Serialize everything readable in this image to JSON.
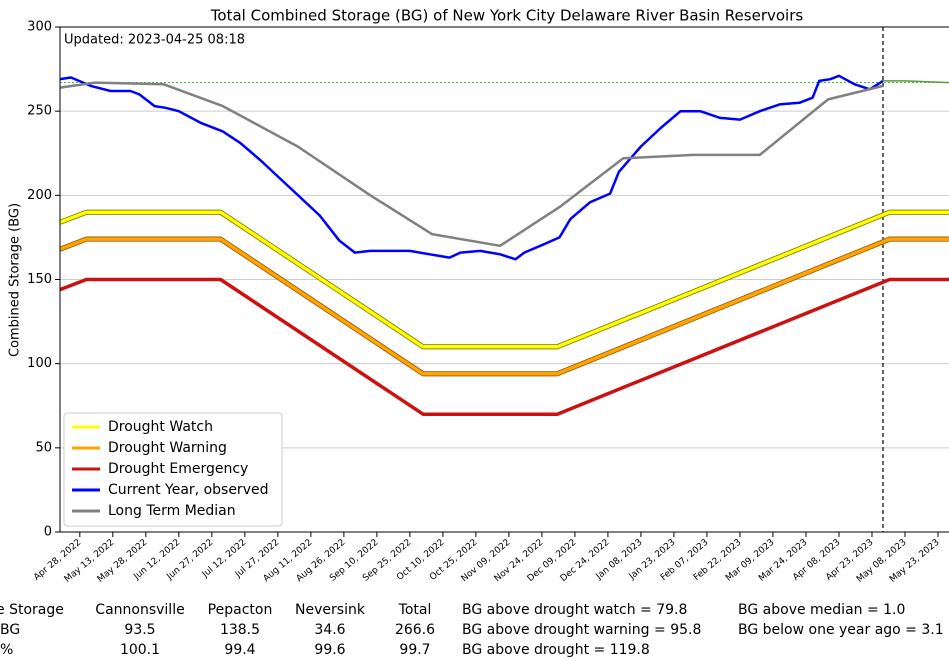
{
  "chart_data": {
    "type": "line",
    "title": "Total Combined Storage (BG) of New York City Delaware River Basin Reservoirs",
    "annotation": "Updated: 2023-04-25 08:18",
    "y_label": "Combined Storage (BG)",
    "xlim": [
      "2022-04-19",
      "2023-05-28"
    ],
    "xticks": [
      {
        "value": "2022-04-28",
        "label": "Apr 28, 2022"
      },
      {
        "value": "2022-05-13",
        "label": "May 13, 2022"
      },
      {
        "value": "2022-05-28",
        "label": "May 28, 2022"
      },
      {
        "value": "2022-06-12",
        "label": "Jun 12, 2022"
      },
      {
        "value": "2022-06-27",
        "label": "Jun 27, 2022"
      },
      {
        "value": "2022-07-12",
        "label": "Jul 12, 2022"
      },
      {
        "value": "2022-07-27",
        "label": "Jul 27, 2022"
      },
      {
        "value": "2022-08-11",
        "label": "Aug 11, 2022"
      },
      {
        "value": "2022-08-26",
        "label": "Aug 26, 2022"
      },
      {
        "value": "2022-09-10",
        "label": "Sep 10, 2022"
      },
      {
        "value": "2022-09-25",
        "label": "Sep 25, 2022"
      },
      {
        "value": "2022-10-10",
        "label": "Oct 10, 2022"
      },
      {
        "value": "2022-10-25",
        "label": "Oct 25, 2022"
      },
      {
        "value": "2022-11-09",
        "label": "Nov 09, 2022"
      },
      {
        "value": "2022-11-24",
        "label": "Nov 24, 2022"
      },
      {
        "value": "2022-12-09",
        "label": "Dec 09, 2022"
      },
      {
        "value": "2022-12-24",
        "label": "Dec 24, 2022"
      },
      {
        "value": "2023-01-08",
        "label": "Jan 08, 2023"
      },
      {
        "value": "2023-01-23",
        "label": "Jan 23, 2023"
      },
      {
        "value": "2023-02-07",
        "label": "Feb 07, 2023"
      },
      {
        "value": "2023-02-22",
        "label": "Feb 22, 2023"
      },
      {
        "value": "2023-03-09",
        "label": "Mar 09, 2023"
      },
      {
        "value": "2023-03-24",
        "label": "Mar 24, 2023"
      },
      {
        "value": "2023-04-08",
        "label": "Apr 08, 2023"
      },
      {
        "value": "2023-04-23",
        "label": "Apr 23, 2023"
      },
      {
        "value": "2023-05-08",
        "label": "May 08, 2023"
      },
      {
        "value": "2023-05-23",
        "label": "May 23, 2023"
      }
    ],
    "ylim": [
      0,
      300
    ],
    "yticks": [
      0,
      50,
      100,
      150,
      200,
      250,
      300
    ],
    "grid": true,
    "legend": "lower left",
    "series": [
      {
        "name": "Drought Watch",
        "color": "#ffff00",
        "x": [
          "2022-04-19",
          "2022-05-01",
          "2022-07-01",
          "2022-10-01",
          "2022-12-01",
          "2023-05-01",
          "2023-05-28"
        ],
        "values": [
          184,
          190,
          190,
          110,
          110,
          190,
          190
        ]
      },
      {
        "name": "Drought Warning",
        "color": "#ffa500",
        "x": [
          "2022-04-19",
          "2022-05-01",
          "2022-07-01",
          "2022-10-01",
          "2022-12-01",
          "2023-05-01",
          "2023-05-28"
        ],
        "values": [
          168,
          174,
          174,
          94,
          94,
          174,
          174
        ]
      },
      {
        "name": "Drought Emergency",
        "color": "#cc1111",
        "x": [
          "2022-04-19",
          "2022-05-01",
          "2022-07-01",
          "2022-10-01",
          "2022-12-01",
          "2023-05-01",
          "2023-05-28"
        ],
        "values": [
          144,
          150,
          150,
          70,
          70,
          150,
          150
        ]
      },
      {
        "name": "Current Year, observed",
        "color": "#0000ff",
        "x": [
          "2022-04-19",
          "2022-04-24",
          "2022-05-03",
          "2022-05-12",
          "2022-05-21",
          "2022-05-25",
          "2022-06-01",
          "2022-06-06",
          "2022-06-12",
          "2022-06-22",
          "2022-07-02",
          "2022-07-10",
          "2022-07-19",
          "2022-07-28",
          "2022-08-06",
          "2022-08-15",
          "2022-08-24",
          "2022-08-31",
          "2022-09-07",
          "2022-09-16",
          "2022-09-25",
          "2022-10-04",
          "2022-10-13",
          "2022-10-18",
          "2022-10-27",
          "2022-11-05",
          "2022-11-12",
          "2022-11-16",
          "2022-11-25",
          "2022-12-02",
          "2022-12-07",
          "2022-12-16",
          "2022-12-25",
          "2022-12-29",
          "2023-01-08",
          "2023-01-17",
          "2023-01-26",
          "2023-02-04",
          "2023-02-13",
          "2023-02-22",
          "2023-03-03",
          "2023-03-12",
          "2023-03-21",
          "2023-03-27",
          "2023-03-30",
          "2023-04-04",
          "2023-04-08",
          "2023-04-15",
          "2023-04-22",
          "2023-04-28"
        ],
        "values": [
          269,
          270,
          265,
          262,
          262,
          260,
          253,
          252,
          250,
          243,
          238,
          231,
          221,
          210,
          199,
          188,
          173,
          166,
          167,
          167,
          167,
          165,
          163,
          166,
          167,
          165,
          162,
          166,
          171,
          175,
          186,
          196,
          201,
          214,
          229,
          240,
          250,
          250,
          246,
          245,
          250,
          254,
          255,
          258,
          268,
          269,
          271,
          266,
          263,
          268
        ]
      },
      {
        "name": "Long Term Median",
        "color": "#808080",
        "x": [
          "2022-04-19",
          "2022-05-05",
          "2022-06-05",
          "2022-07-02",
          "2022-08-05",
          "2022-09-07",
          "2022-10-05",
          "2022-11-05",
          "2022-12-02",
          "2022-12-31",
          "2023-02-01",
          "2023-03-03",
          "2023-04-03",
          "2023-04-28"
        ],
        "values": [
          264,
          267,
          266,
          253,
          229,
          200,
          177,
          170,
          193,
          222,
          224,
          224,
          257,
          265
        ]
      },
      {
        "color": "#5a9a3a",
        "x": [
          "2023-04-28",
          "2023-05-08",
          "2023-05-28"
        ],
        "values": [
          268,
          268,
          267
        ]
      }
    ],
    "hline": {
      "value": 267,
      "color": "#33cc33"
    },
    "vline": "2023-04-28"
  },
  "table": {
    "header": [
      "e Storage",
      "Cannonsville",
      "Pepacton",
      "Neversink",
      "Total"
    ],
    "rows": [
      [
        "BG",
        93.5,
        138.5,
        34.6,
        266.6
      ],
      [
        "%",
        100.1,
        99.4,
        99.6,
        99.7
      ]
    ]
  },
  "notes": [
    "BG above drought watch = 79.8",
    "BG above drought warning = 95.8",
    "BG above drought = 119.8",
    "BG above median = 1.0",
    "BG below one year ago = 3.1"
  ]
}
